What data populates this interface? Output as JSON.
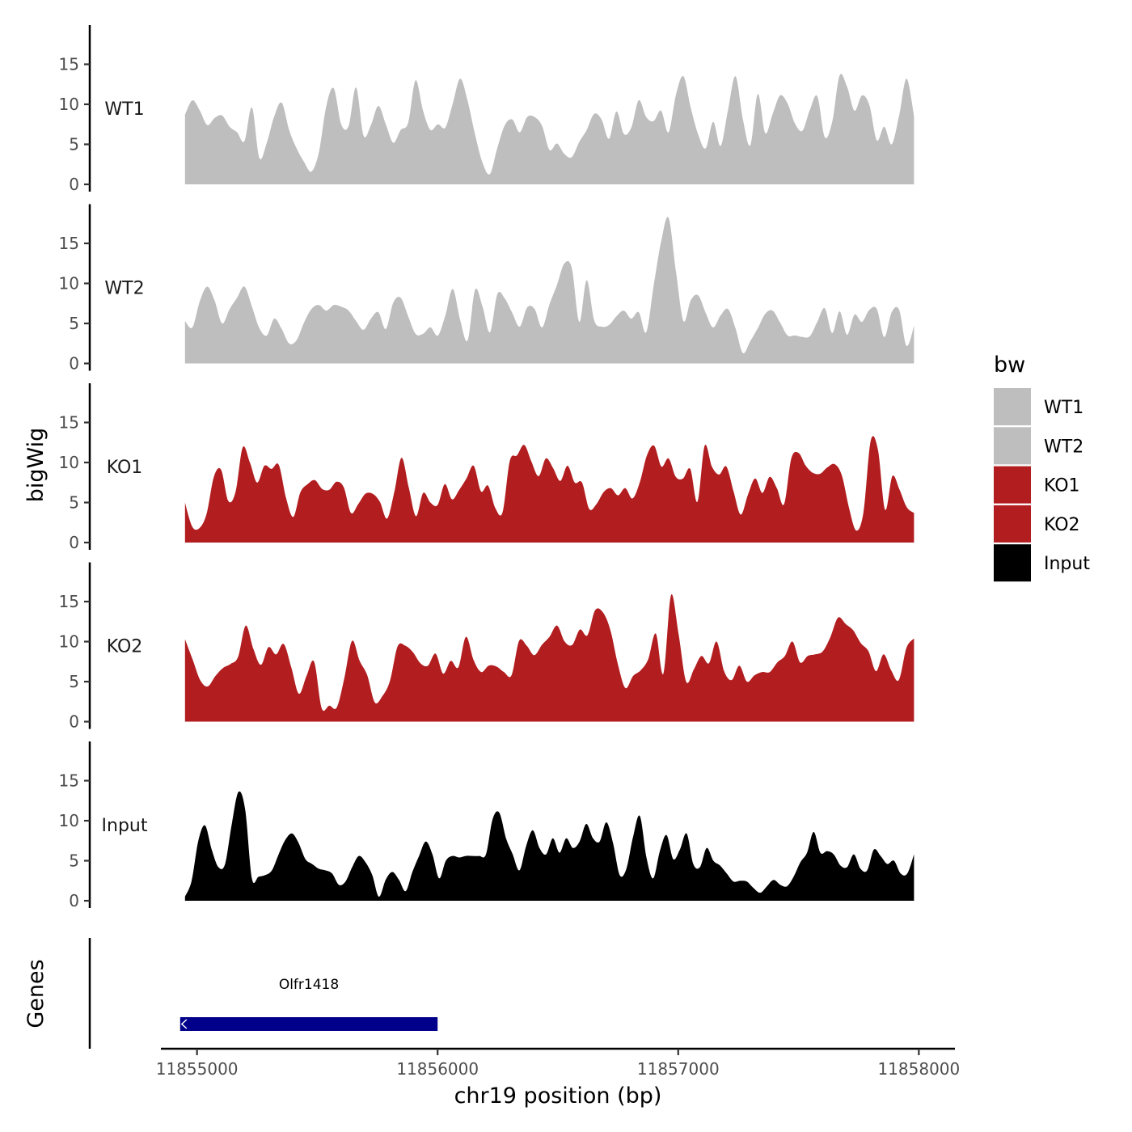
{
  "chart_data": {
    "type": "area",
    "title": "",
    "ylabel": "bigWig",
    "xlabel": "chr19 position (bp)",
    "genes_label": "Genes",
    "chromosome": "chr19",
    "xlim": [
      11854850,
      11858150
    ],
    "x_range": [
      11854950,
      11857980
    ],
    "ylim": [
      0,
      20
    ],
    "x_ticks": [
      11855000,
      11856000,
      11857000,
      11858000
    ],
    "x_tick_labels": [
      "11855000",
      "11856000",
      "11857000",
      "11858000"
    ],
    "y_ticks": [
      0,
      5,
      10,
      15
    ],
    "y_tick_labels": [
      "0",
      "5",
      "10",
      "15"
    ],
    "legend_title": "bw",
    "legend": [
      {
        "label": "WT1",
        "color": "#bebebe"
      },
      {
        "label": "WT2",
        "color": "#bebebe"
      },
      {
        "label": "KO1",
        "color": "#b21e20"
      },
      {
        "label": "KO2",
        "color": "#b21e20"
      },
      {
        "label": "Input",
        "color": "#000000"
      }
    ],
    "tracks": [
      {
        "name": "WT1",
        "color": "#bebebe",
        "values": [
          8.7,
          10.5,
          9.2,
          7.4,
          8.3,
          8.6,
          7.2,
          6.5,
          5.4,
          9.6,
          3.3,
          5.2,
          8.5,
          10.2,
          6.8,
          4.5,
          2.8,
          1.6,
          4,
          9.8,
          12,
          7.5,
          7.3,
          12.1,
          6.1,
          7.4,
          9.8,
          7.5,
          5.2,
          6.8,
          7.7,
          13,
          9.2,
          6.8,
          7.5,
          7.1,
          10.1,
          13.2,
          10.4,
          6.2,
          2.7,
          1.3,
          4.6,
          7.4,
          8.1,
          6.5,
          8.4,
          8.4,
          7.3,
          4.3,
          5.1,
          3.8,
          3.4,
          5.3,
          6.8,
          8.8,
          8.1,
          5.7,
          9.1,
          6.3,
          7.1,
          10.5,
          8.4,
          7.9,
          9.2,
          6.5,
          11.2,
          13.5,
          9.5,
          6.2,
          4.5,
          7.8,
          4.8,
          9.3,
          13.5,
          8.1,
          4.9,
          11.3,
          6.4,
          8.8,
          11.1,
          10.1,
          7.6,
          6.7,
          9.3,
          11,
          5.9,
          7.8,
          13.6,
          12.2,
          9.2,
          11.1,
          9.9,
          5.5,
          7.2,
          5,
          8.6,
          13.2,
          8.5
        ]
      },
      {
        "name": "WT2",
        "color": "#bebebe",
        "values": [
          5.3,
          4.5,
          7.8,
          9.6,
          7.8,
          5,
          6.8,
          8.2,
          9.6,
          7.1,
          4.4,
          3.5,
          5.6,
          4.3,
          2.5,
          2.9,
          5.1,
          6.8,
          7.3,
          6.6,
          7.3,
          7.1,
          6.6,
          5.3,
          4.2,
          5.6,
          6.4,
          4.3,
          7.6,
          8.2,
          5.9,
          3.7,
          3.7,
          4.5,
          3.5,
          6,
          9.3,
          5.4,
          2.9,
          9.2,
          7.1,
          3.9,
          8.7,
          8.1,
          6.3,
          4.6,
          7,
          6.8,
          4.5,
          7.4,
          9.8,
          12.5,
          11.9,
          5.2,
          10.4,
          5.4,
          4.6,
          4.8,
          5.9,
          6.6,
          5.6,
          6.4,
          3.9,
          9.7,
          15.2,
          18.2,
          11.5,
          5.3,
          7.9,
          8.5,
          6.3,
          4.5,
          6,
          6.8,
          4.4,
          1.3,
          2.8,
          4.4,
          6.2,
          6.6,
          5.1,
          3.5,
          3.5,
          3.3,
          3.4,
          5.2,
          6.9,
          3.8,
          6.5,
          3.6,
          6.1,
          5.2,
          6.7,
          6.8,
          3.3,
          6.4,
          6.7,
          2.2,
          4.7
        ]
      },
      {
        "name": "KO1",
        "color": "#b21e20",
        "values": [
          5,
          2,
          1.8,
          3.6,
          8.2,
          9.1,
          5.2,
          6.3,
          11.9,
          10,
          7.5,
          9.6,
          9.2,
          9.7,
          5.6,
          3.2,
          6.3,
          7.3,
          7.8,
          6.7,
          6.6,
          7.6,
          6.9,
          3.7,
          4.8,
          6.1,
          6.1,
          5.1,
          3,
          6.3,
          10.6,
          6.9,
          3.3,
          6.2,
          5,
          4.7,
          7.3,
          5.4,
          6.6,
          8,
          9.6,
          6.4,
          7.1,
          4.3,
          3.8,
          10.2,
          10.9,
          12.2,
          10.1,
          8.3,
          10.5,
          9.3,
          7.7,
          9.6,
          7.5,
          7.5,
          4.2,
          4.8,
          6.3,
          6.8,
          5.9,
          6.8,
          5.5,
          7.5,
          10.9,
          12.1,
          9.5,
          10.5,
          8.2,
          8,
          9.2,
          5.1,
          12.1,
          9.5,
          8.5,
          9.5,
          6.4,
          3.5,
          6,
          8,
          6.2,
          8.2,
          6.8,
          4.8,
          10.5,
          11.2,
          9.6,
          8.7,
          8.6,
          9.4,
          9.8,
          8.4,
          4.3,
          1.5,
          3.8,
          12.7,
          11.6,
          4.1,
          8.3,
          6.6,
          4.4,
          3.7
        ]
      },
      {
        "name": "KO2",
        "color": "#b21e20",
        "values": [
          10.3,
          7.8,
          5.2,
          4.4,
          5.7,
          6.7,
          7.2,
          8.1,
          12,
          9.1,
          7.1,
          9.3,
          8.4,
          9.7,
          6.8,
          3.5,
          5.7,
          7.5,
          1.7,
          2,
          1.8,
          5.5,
          10.1,
          7.6,
          5.8,
          2.4,
          3.2,
          5.1,
          9.4,
          9.5,
          8.7,
          7.3,
          7,
          8.5,
          6,
          7.6,
          6.8,
          10.6,
          7.7,
          6.2,
          7,
          6.9,
          6.2,
          5.8,
          10.1,
          9.5,
          8.3,
          9.6,
          10.6,
          12,
          10,
          9.6,
          11.5,
          10.8,
          13.9,
          13.7,
          11.5,
          7.2,
          4.2,
          5.7,
          6.4,
          7.8,
          11,
          6,
          15.8,
          10.9,
          5,
          6.5,
          8.2,
          7.3,
          10,
          6.3,
          5.2,
          7,
          5,
          5.8,
          6.2,
          6.2,
          7.4,
          8.2,
          10,
          7.4,
          8.2,
          8.4,
          8.8,
          10.6,
          13,
          12.2,
          11.4,
          9.8,
          8.8,
          6.3,
          8.4,
          6.4,
          5.2,
          9.2,
          10.4
        ]
      },
      {
        "name": "Input",
        "color": "#000000",
        "values": [
          0.5,
          2.5,
          7.5,
          9.4,
          6.4,
          4.2,
          4.6,
          9.6,
          13.6,
          11.4,
          2.8,
          3,
          3.2,
          3.8,
          5.8,
          7.6,
          8.4,
          7.2,
          5.2,
          4.6,
          4,
          3.8,
          3.4,
          2,
          2.4,
          4.2,
          5.6,
          4.8,
          3.2,
          0.5,
          2.6,
          3.6,
          2.6,
          1.2,
          3.6,
          5.6,
          7.4,
          5.8,
          2.8,
          5,
          5.6,
          5.4,
          5.6,
          5.6,
          5.6,
          5.8,
          10.2,
          11,
          7.8,
          5.8,
          3.8,
          6.8,
          8.8,
          6.6,
          5.8,
          7.8,
          6,
          7.8,
          6.6,
          7.4,
          9.6,
          7.8,
          7.4,
          9.8,
          7.2,
          3.2,
          4,
          8,
          10.6,
          5.4,
          2.8,
          6.2,
          8.2,
          5.2,
          6.4,
          8.4,
          4.6,
          4.2,
          6.6,
          5,
          4.4,
          3.4,
          2.4,
          2.5,
          2.4,
          1.6,
          1,
          1.8,
          2.6,
          2,
          1.8,
          3,
          4.8,
          6,
          8.6,
          6,
          6.2,
          5.8,
          4.4,
          4.2,
          5.8,
          4,
          3.8,
          6.4,
          5.6,
          4.6,
          5,
          3.4,
          3.4,
          5.8
        ]
      }
    ],
    "gene": {
      "name": "Olfr1418",
      "start": 11854930,
      "end": 11856000,
      "color": "#00008b"
    }
  }
}
